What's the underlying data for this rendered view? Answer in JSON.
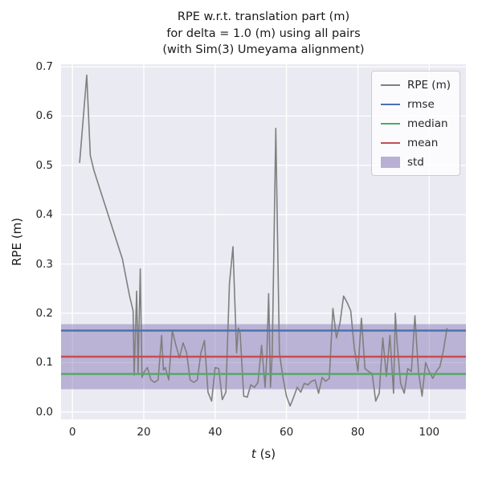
{
  "title_lines": [
    "RPE w.r.t. translation part (m)",
    "for delta = 1.0 (m) using all pairs",
    "(with Sim(3) Umeyama alignment)"
  ],
  "xlabel_var": "t",
  "xlabel_unit": " (s)",
  "ylabel": "RPE (m)",
  "legend": {
    "items": [
      {
        "key": "rpe",
        "label": "RPE (m)",
        "type": "line",
        "color": "#7f7f7f"
      },
      {
        "key": "rmse",
        "label": "rmse",
        "type": "line",
        "color": "#4c72b0"
      },
      {
        "key": "median",
        "label": "median",
        "type": "line",
        "color": "#55a868"
      },
      {
        "key": "mean",
        "label": "mean",
        "type": "line",
        "color": "#c44e52"
      },
      {
        "key": "std",
        "label": "std",
        "type": "patch",
        "color": "#8172b2"
      }
    ]
  },
  "chart_data": {
    "type": "line",
    "title": "RPE w.r.t. translation part (m)\nfor delta = 1.0 (m) using all pairs\n(with Sim(3) Umeyama alignment)",
    "xlabel": "t (s)",
    "ylabel": "RPE (m)",
    "xlim": [
      -3.2,
      110.3
    ],
    "ylim": [
      -0.015,
      0.705
    ],
    "xticks": [
      0,
      20,
      40,
      60,
      80,
      100
    ],
    "xtick_labels": [
      "0",
      "20",
      "40",
      "60",
      "80",
      "100"
    ],
    "yticks": [
      0.0,
      0.1,
      0.2,
      0.3,
      0.4,
      0.5,
      0.6,
      0.7
    ],
    "ytick_labels": [
      "0.0",
      "0.1",
      "0.2",
      "0.3",
      "0.4",
      "0.5",
      "0.6",
      "0.7"
    ],
    "grid": true,
    "legend_position": "upper right",
    "stats": {
      "rmse": 0.165,
      "median": 0.077,
      "mean": 0.112,
      "std": 0.066
    },
    "colors": {
      "rpe": "#7f7f7f",
      "rmse": "#4c72b0",
      "median": "#55a868",
      "mean": "#c44e52",
      "std": "#8172b2",
      "plot_bg": "#eaeaf2",
      "grid": "#ffffff"
    },
    "series": [
      {
        "name": "RPE (m)",
        "x": [
          2,
          4,
          5,
          6,
          8,
          10,
          12,
          14,
          16,
          17,
          17.3,
          18,
          18.4,
          19,
          19.5,
          20,
          21,
          22,
          23,
          24,
          25,
          25.5,
          26,
          27,
          28,
          29,
          30,
          31,
          32,
          33,
          34,
          35,
          36,
          37,
          38,
          39,
          40,
          41,
          42,
          43,
          44,
          45,
          46,
          46.5,
          47,
          48,
          49,
          50,
          51,
          52,
          53,
          54,
          54.5,
          55,
          55.5,
          56,
          57,
          58,
          59,
          60,
          61,
          62,
          63,
          64,
          65,
          66,
          67,
          68,
          69,
          70,
          71,
          72,
          73,
          74,
          75,
          76,
          77,
          78,
          79,
          80,
          81,
          82,
          83,
          84,
          85,
          86,
          87,
          88,
          89,
          90,
          90.5,
          91,
          92,
          93,
          94,
          95,
          96,
          97,
          98,
          99,
          100,
          101,
          102,
          103,
          104,
          105
        ],
        "y": [
          0.505,
          0.683,
          0.52,
          0.49,
          0.445,
          0.4,
          0.355,
          0.31,
          0.235,
          0.205,
          0.075,
          0.245,
          0.08,
          0.29,
          0.07,
          0.08,
          0.09,
          0.065,
          0.06,
          0.065,
          0.155,
          0.085,
          0.09,
          0.065,
          0.165,
          0.135,
          0.11,
          0.14,
          0.12,
          0.065,
          0.06,
          0.065,
          0.12,
          0.145,
          0.04,
          0.022,
          0.09,
          0.088,
          0.025,
          0.04,
          0.26,
          0.335,
          0.12,
          0.17,
          0.16,
          0.032,
          0.03,
          0.055,
          0.05,
          0.06,
          0.135,
          0.05,
          0.115,
          0.24,
          0.05,
          0.12,
          0.575,
          0.12,
          0.07,
          0.032,
          0.012,
          0.03,
          0.05,
          0.04,
          0.058,
          0.055,
          0.062,
          0.065,
          0.038,
          0.07,
          0.062,
          0.068,
          0.21,
          0.15,
          0.18,
          0.235,
          0.222,
          0.205,
          0.13,
          0.082,
          0.19,
          0.088,
          0.082,
          0.078,
          0.022,
          0.038,
          0.15,
          0.072,
          0.155,
          0.038,
          0.2,
          0.14,
          0.058,
          0.038,
          0.088,
          0.082,
          0.195,
          0.082,
          0.032,
          0.1,
          0.082,
          0.068,
          0.082,
          0.092,
          0.125,
          0.17
        ]
      }
    ]
  }
}
